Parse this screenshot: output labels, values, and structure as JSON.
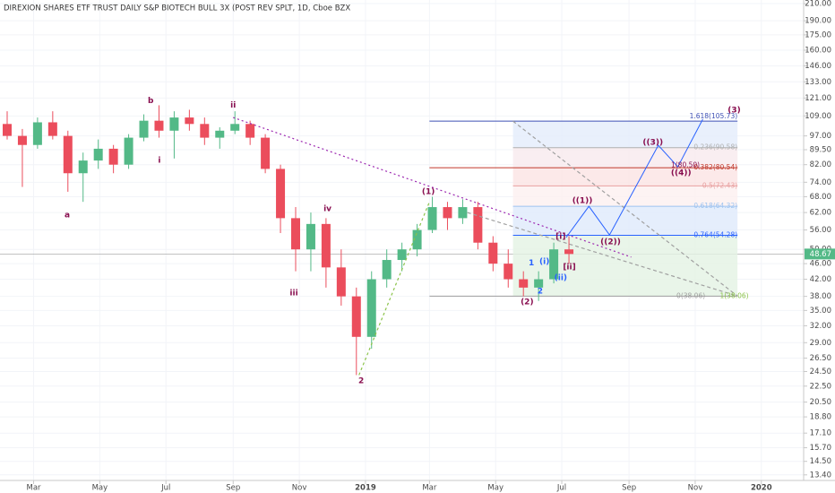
{
  "chart_data": {
    "type": "candlestick",
    "title": "DIREXION SHARES ETF TRUST DAILY S&P BIOTECH BULL 3X (POST REV SPLT, 1D, Cboe BZX",
    "log_scale": true,
    "grid": true,
    "up_color": "#53b987",
    "down_color": "#eb4d5c",
    "xlim": [
      "2018-01-29",
      "2020-02-09"
    ],
    "ylim": [
      12.97,
      214.5
    ],
    "xticks": [
      {
        "value": "2018-03-01",
        "label": "Mar"
      },
      {
        "value": "2018-05-01",
        "label": "May"
      },
      {
        "value": "2018-07-01",
        "label": "Jul"
      },
      {
        "value": "2018-09-01",
        "label": "Sep"
      },
      {
        "value": "2018-11-01",
        "label": "Nov"
      },
      {
        "value": "2019-01-01",
        "label": "2019"
      },
      {
        "value": "2019-03-01",
        "label": "Mar"
      },
      {
        "value": "2019-05-01",
        "label": "May"
      },
      {
        "value": "2019-07-01",
        "label": "Jul"
      },
      {
        "value": "2019-09-01",
        "label": "Sep"
      },
      {
        "value": "2019-11-01",
        "label": "Nov"
      },
      {
        "value": "2020-01-01",
        "label": "2020"
      }
    ],
    "yticks": [
      {
        "value": 210,
        "label": "210.00"
      },
      {
        "value": 190,
        "label": "190.00"
      },
      {
        "value": 175,
        "label": "175.00"
      },
      {
        "value": 160,
        "label": "160.00"
      },
      {
        "value": 146,
        "label": "146.00"
      },
      {
        "value": 133,
        "label": "133.00"
      },
      {
        "value": 121,
        "label": "121.00"
      },
      {
        "value": 109,
        "label": "109.00"
      },
      {
        "value": 97,
        "label": "97.00"
      },
      {
        "value": 89.5,
        "label": "89.50"
      },
      {
        "value": 82,
        "label": "82.00"
      },
      {
        "value": 74,
        "label": "74.00"
      },
      {
        "value": 68,
        "label": "68.00"
      },
      {
        "value": 62,
        "label": "62.00"
      },
      {
        "value": 56,
        "label": "56.00"
      },
      {
        "value": 50,
        "label": "50.00"
      },
      {
        "value": 46,
        "label": "46.00"
      },
      {
        "value": 42,
        "label": "42.00"
      },
      {
        "value": 38,
        "label": "38.00"
      },
      {
        "value": 35,
        "label": "35.00"
      },
      {
        "value": 32,
        "label": "32.00"
      },
      {
        "value": 29,
        "label": "29.00"
      },
      {
        "value": 26.5,
        "label": "26.50"
      },
      {
        "value": 24.5,
        "label": "24.50"
      },
      {
        "value": 22.5,
        "label": "22.50"
      },
      {
        "value": 20.5,
        "label": "20.50"
      },
      {
        "value": 18.8,
        "label": "18.80"
      },
      {
        "value": 17.1,
        "label": "17.10"
      },
      {
        "value": 15.7,
        "label": "15.70"
      },
      {
        "value": 14.5,
        "label": "14.50"
      },
      {
        "value": 13.4,
        "label": "13.40"
      }
    ],
    "last_price": {
      "value": 48.67,
      "label": "48.67",
      "color": "#53b987"
    },
    "candles": {
      "x": [
        "2018-01-29",
        "2018-02-12",
        "2018-02-26",
        "2018-03-12",
        "2018-03-26",
        "2018-04-09",
        "2018-04-23",
        "2018-05-07",
        "2018-05-21",
        "2018-06-04",
        "2018-06-18",
        "2018-07-02",
        "2018-07-16",
        "2018-07-30",
        "2018-08-13",
        "2018-08-27",
        "2018-09-10",
        "2018-09-24",
        "2018-10-08",
        "2018-10-22",
        "2018-11-05",
        "2018-11-19",
        "2018-12-03",
        "2018-12-17",
        "2018-12-31",
        "2019-01-14",
        "2019-01-28",
        "2019-02-11",
        "2019-02-25",
        "2019-03-11",
        "2019-03-25",
        "2019-04-08",
        "2019-04-22",
        "2019-05-06",
        "2019-05-20",
        "2019-06-03",
        "2019-06-17",
        "2019-07-01"
      ],
      "open": [
        104,
        97,
        92,
        105,
        97,
        78,
        84,
        90,
        82,
        96,
        106,
        100,
        108,
        104,
        96,
        100,
        104,
        96,
        80,
        60,
        50,
        58,
        45,
        38,
        30,
        42,
        47,
        50,
        56,
        64,
        60,
        64,
        52,
        46,
        42,
        40,
        42,
        50
      ],
      "high": [
        112,
        101,
        108,
        112,
        100,
        88,
        95,
        92,
        98,
        110,
        116,
        112,
        113,
        108,
        102,
        112,
        106,
        98,
        82,
        64,
        62,
        60,
        50,
        40,
        44,
        50,
        52,
        58,
        68,
        66,
        67,
        66,
        54,
        50,
        44,
        44,
        52,
        54
      ],
      "low": [
        95,
        72,
        90,
        95,
        70,
        66,
        80,
        78,
        80,
        94,
        96,
        85,
        100,
        92,
        90,
        98,
        92,
        78,
        55,
        44,
        44,
        40,
        36,
        24,
        28,
        40,
        44,
        48,
        55,
        56,
        58,
        50,
        44,
        40,
        38,
        37,
        41,
        46
      ],
      "close": [
        97,
        92,
        105,
        97,
        78,
        84,
        90,
        82,
        96,
        106,
        100,
        108,
        104,
        96,
        100,
        104,
        96,
        80,
        60,
        50,
        58,
        45,
        38,
        30,
        42,
        47,
        50,
        56,
        64,
        60,
        64,
        52,
        46,
        42,
        40,
        42,
        50,
        48.67
      ]
    },
    "fib": {
      "from": "2019-03-01",
      "box_from": "2019-05-17",
      "to": "2019-12-10",
      "levels": [
        {
          "label": "1.618(105.73)",
          "value": 105.73,
          "color": "#3f51b5",
          "fill": "#e3ecfb",
          "extended": true
        },
        {
          "label": "0.236(90.58)",
          "value": 90.58,
          "color": "#b0b0b0",
          "fill": "#f8eaee",
          "extended": false
        },
        {
          "label": "0.382(80.54)",
          "value": 80.54,
          "color": "#c0392b",
          "fill": "#fbe3e3",
          "extended": true
        },
        {
          "label": "0.5(72.43)",
          "value": 72.43,
          "color": "#e8a0a0",
          "fill": "#fdf0f0",
          "extended": false
        },
        {
          "label": "0.618(64.32)",
          "value": 64.32,
          "color": "#9ec3f0",
          "fill": "#dfeafb",
          "extended": false
        },
        {
          "label": "0.764(54.28)",
          "value": 54.28,
          "color": "#2962ff",
          "fill": "#e4f2e4",
          "extended": false
        },
        {
          "label": "0(38.06)",
          "value": 38.06,
          "color": "#9e9e9e",
          "fill": "#e4f2e4",
          "extended": true
        }
      ]
    },
    "trendlines": [
      {
        "from": [
          "2018-09-01",
          108
        ],
        "to": [
          "2019-09-03",
          47.8
        ],
        "color": "#9c27b0",
        "dash": "2,3"
      },
      {
        "from": [
          "2018-12-26",
          24
        ],
        "to": [
          "2019-03-01",
          66
        ],
        "color": "#8bc34a",
        "dash": "3,3"
      },
      {
        "from": [
          "2019-04-05",
          62
        ],
        "to": [
          "2019-12-10",
          38.06
        ],
        "color": "#a0a0a0",
        "dash": "4,3"
      },
      {
        "from": [
          "2019-05-17",
          105.73
        ],
        "to": [
          "2019-12-10",
          38.06
        ],
        "color": "#a0a0a0",
        "dash": "4,3"
      }
    ],
    "projection": {
      "color": "#2962ff",
      "x": [
        "2019-07-05",
        "2019-07-26",
        "2019-08-14",
        "2019-09-28",
        "2019-10-16",
        "2019-11-08"
      ],
      "y": [
        53.6,
        64.3,
        54.4,
        91.8,
        81,
        106.9
      ]
    },
    "annotations": [
      {
        "text": "a",
        "x": "2018-04-01",
        "y": 61,
        "color": "#880e4f"
      },
      {
        "text": "b",
        "x": "2018-06-17",
        "y": 119,
        "color": "#880e4f"
      },
      {
        "text": "i",
        "x": "2018-06-25",
        "y": 84,
        "color": "#880e4f"
      },
      {
        "text": "ii",
        "x": "2018-09-01",
        "y": 116,
        "color": "#880e4f"
      },
      {
        "text": "iii",
        "x": "2018-10-27",
        "y": 38.7,
        "color": "#880e4f"
      },
      {
        "text": "iv",
        "x": "2018-11-27",
        "y": 63.4,
        "color": "#880e4f"
      },
      {
        "text": "2",
        "x": "2018-12-28",
        "y": 23.2,
        "color": "#880e4f"
      },
      {
        "text": "(1)",
        "x": "2019-02-28",
        "y": 70,
        "color": "#880e4f"
      },
      {
        "text": "(2)",
        "x": "2019-05-30",
        "y": 36.8,
        "color": "#880e4f"
      },
      {
        "text": "1",
        "x": "2019-06-03",
        "y": 46.2,
        "color": "#2962ff"
      },
      {
        "text": "(i)",
        "x": "2019-06-15",
        "y": 46.5,
        "color": "#2962ff"
      },
      {
        "text": "2",
        "x": "2019-06-11",
        "y": 39.1,
        "color": "#2962ff"
      },
      {
        "text": "(ii)",
        "x": "2019-06-30",
        "y": 42.3,
        "color": "#2962ff"
      },
      {
        "text": "[i]",
        "x": "2019-06-30",
        "y": 53.9,
        "color": "#880e4f"
      },
      {
        "text": "[ii]",
        "x": "2019-07-08",
        "y": 45.1,
        "color": "#880e4f"
      },
      {
        "text": "((1))",
        "x": "2019-07-20",
        "y": 66.4,
        "color": "#880e4f"
      },
      {
        "text": "((2))",
        "x": "2019-08-15",
        "y": 52.2,
        "color": "#880e4f"
      },
      {
        "text": "((3))",
        "x": "2019-09-23",
        "y": 93.3,
        "color": "#880e4f"
      },
      {
        "text": "((4))",
        "x": "2019-10-19",
        "y": 78.1,
        "color": "#880e4f"
      },
      {
        "text": "1(80.50)",
        "x": "2019-10-23",
        "y": 81.6,
        "color": "#880e4f"
      },
      {
        "text": "(3)",
        "x": "2019-12-07",
        "y": 112.7,
        "color": "#880e4f"
      },
      {
        "text": "1(38.06)",
        "x": "2019-12-07",
        "y": 38.06,
        "color": "#8bc34a"
      }
    ]
  }
}
